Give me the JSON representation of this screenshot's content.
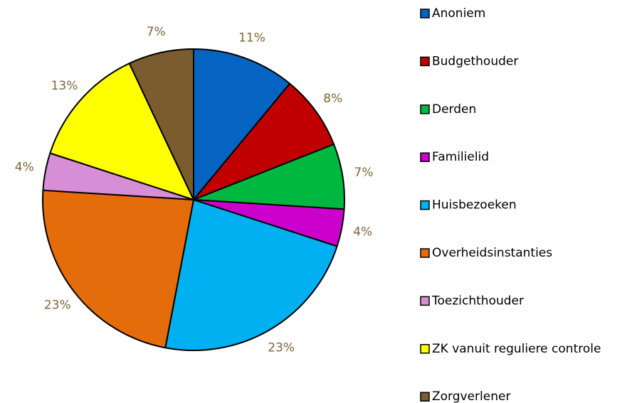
{
  "chart_data": {
    "type": "pie",
    "categories": [
      "Anoniem",
      "Budgethouder",
      "Derden",
      "Familielid",
      "Huisbezoeken",
      "Overheidsinstanties",
      "Toezichthouder",
      "ZK vanuit reguliere controle",
      "Zorgverlener"
    ],
    "values": [
      11,
      8,
      7,
      4,
      23,
      23,
      4,
      13,
      7
    ],
    "value_labels": [
      "11%",
      "8%",
      "7%",
      "4%",
      "23%",
      "23%",
      "4%",
      "13%",
      "7%"
    ],
    "colors": [
      "#0563c1",
      "#c00000",
      "#00b83f",
      "#cc00cc",
      "#00b0f0",
      "#e46c0a",
      "#d68fd6",
      "#ffff00",
      "#7a5c2e"
    ],
    "legend": "right"
  }
}
